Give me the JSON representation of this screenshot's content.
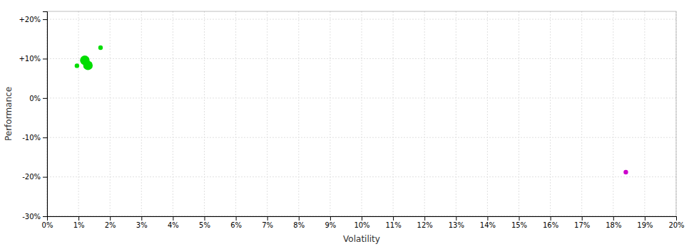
{
  "chart_data": {
    "type": "scatter",
    "xlabel": "Volatility",
    "ylabel": "Performance",
    "xlim": [
      0,
      0.2
    ],
    "ylim": [
      -0.3,
      0.22
    ],
    "xticks": [
      {
        "value": 0.0,
        "label": "0%"
      },
      {
        "value": 0.01,
        "label": "1%"
      },
      {
        "value": 0.02,
        "label": "2%"
      },
      {
        "value": 0.03,
        "label": "3%"
      },
      {
        "value": 0.04,
        "label": "4%"
      },
      {
        "value": 0.05,
        "label": "5%"
      },
      {
        "value": 0.06,
        "label": "6%"
      },
      {
        "value": 0.07,
        "label": "7%"
      },
      {
        "value": 0.08,
        "label": "8%"
      },
      {
        "value": 0.09,
        "label": "9%"
      },
      {
        "value": 0.1,
        "label": "10%"
      },
      {
        "value": 0.11,
        "label": "11%"
      },
      {
        "value": 0.12,
        "label": "12%"
      },
      {
        "value": 0.13,
        "label": "13%"
      },
      {
        "value": 0.14,
        "label": "14%"
      },
      {
        "value": 0.15,
        "label": "15%"
      },
      {
        "value": 0.16,
        "label": "16%"
      },
      {
        "value": 0.17,
        "label": "17%"
      },
      {
        "value": 0.18,
        "label": "18%"
      },
      {
        "value": 0.19,
        "label": "19%"
      },
      {
        "value": 0.2,
        "label": "20%"
      }
    ],
    "yticks": [
      {
        "value": -0.3,
        "label": "-30%"
      },
      {
        "value": -0.2,
        "label": "-20%"
      },
      {
        "value": -0.1,
        "label": "-10%"
      },
      {
        "value": 0.0,
        "label": "0%"
      },
      {
        "value": 0.1,
        "label": "+10%"
      },
      {
        "value": 0.2,
        "label": "+20%"
      }
    ],
    "grid": true,
    "series": [
      {
        "color": "#00dd00",
        "x": [
          0.0095,
          0.012,
          0.013,
          0.017
        ],
        "values": [
          0.082,
          0.096,
          0.083,
          0.128
        ],
        "size": [
          18,
          80,
          80,
          18
        ]
      },
      {
        "color": "#cc00cc",
        "x": [
          0.184
        ],
        "values": [
          -0.188
        ],
        "size": [
          18
        ]
      }
    ]
  }
}
